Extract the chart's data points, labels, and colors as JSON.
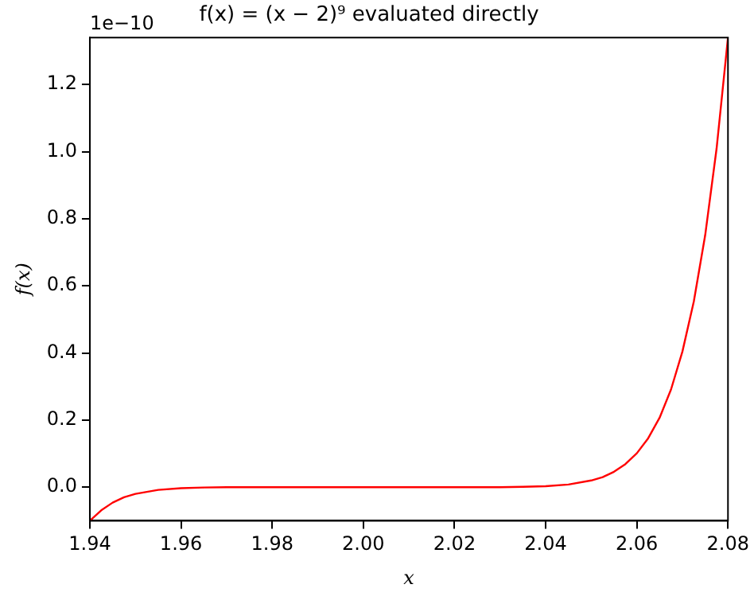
{
  "chart_data": {
    "type": "line",
    "title": "f(x) = (x − 2)⁹ evaluated directly",
    "xlabel": "x",
    "ylabel": "f(x)",
    "annotations": [
      "1e−10"
    ],
    "x": [
      1.94,
      1.9425,
      1.945,
      1.9475,
      1.95,
      1.955,
      1.96,
      1.965,
      1.97,
      1.98,
      1.99,
      2.0,
      2.01,
      2.02,
      2.03,
      2.035,
      2.04,
      2.045,
      2.05,
      2.0525,
      2.055,
      2.0575,
      2.06,
      2.0625,
      2.065,
      2.0675,
      2.07,
      2.0725,
      2.075,
      2.0775,
      2.08
    ],
    "series": [
      {
        "color": "#ff0000",
        "values": [
          -0.1,
          -0.069,
          -0.046,
          -0.03,
          -0.02,
          -0.008,
          -0.003,
          -0.001,
          0.0,
          0.0,
          0.0,
          0.0,
          0.0,
          0.0,
          0.0,
          0.001,
          0.003,
          0.008,
          0.02,
          0.03,
          0.046,
          0.069,
          0.101,
          0.146,
          0.207,
          0.291,
          0.404,
          0.553,
          0.751,
          1.009,
          1.34
        ]
      }
    ],
    "xlim": [
      1.94,
      2.08
    ],
    "ylim": [
      -0.1,
      1.34
    ],
    "xticks": [
      1.94,
      1.96,
      1.98,
      {
        "value": 2.0,
        "label": "2.00"
      },
      2.02,
      2.04,
      2.06,
      2.08
    ],
    "yticks": [
      {
        "value": 0,
        "label": "0.0"
      },
      0.2,
      0.4,
      0.6,
      0.8,
      {
        "value": 1.0,
        "label": "1.0"
      },
      1.2
    ],
    "marker": "none",
    "line_style": "solid"
  }
}
